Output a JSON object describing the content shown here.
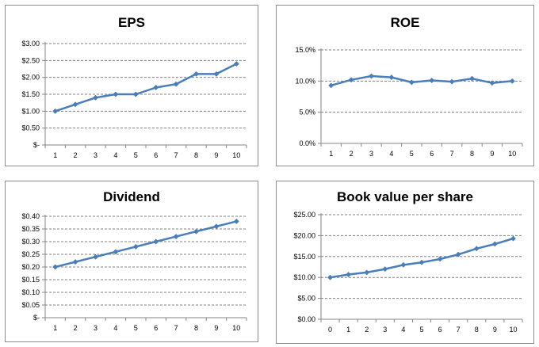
{
  "chart_data": [
    {
      "type": "line",
      "title": "EPS",
      "x": [
        1,
        2,
        3,
        4,
        5,
        6,
        7,
        8,
        9,
        10
      ],
      "series": [
        {
          "values": [
            1.0,
            1.2,
            1.4,
            1.5,
            1.5,
            1.7,
            1.8,
            2.1,
            2.1,
            2.4
          ]
        }
      ],
      "ylim": [
        0,
        3.0
      ],
      "ytick_labels": [
        "$-",
        "$0.50",
        "$1.00",
        "$1.50",
        "$2.00",
        "$2.50",
        "$3.00"
      ],
      "xtick_labels": [
        "1",
        "2",
        "3",
        "4",
        "5",
        "6",
        "7",
        "8",
        "9",
        "10"
      ],
      "grid": true,
      "color": "#4a7ebb"
    },
    {
      "type": "line",
      "title": "ROE",
      "x": [
        1,
        2,
        3,
        4,
        5,
        6,
        7,
        8,
        9,
        10
      ],
      "series": [
        {
          "values": [
            9.3,
            10.2,
            10.8,
            10.6,
            9.8,
            10.1,
            9.9,
            10.4,
            9.7,
            10.0
          ]
        }
      ],
      "ylim": [
        0,
        15
      ],
      "ytick_labels": [
        "0.0%",
        "5.0%",
        "10.0%",
        "15.0%"
      ],
      "xtick_labels": [
        "1",
        "2",
        "3",
        "4",
        "5",
        "6",
        "7",
        "8",
        "9",
        "10"
      ],
      "grid": true,
      "color": "#4a7ebb"
    },
    {
      "type": "line",
      "title": "Dividend",
      "x": [
        1,
        2,
        3,
        4,
        5,
        6,
        7,
        8,
        9,
        10
      ],
      "series": [
        {
          "values": [
            0.2,
            0.22,
            0.24,
            0.26,
            0.28,
            0.3,
            0.32,
            0.34,
            0.36,
            0.38
          ]
        }
      ],
      "ylim": [
        0,
        0.4
      ],
      "ytick_labels": [
        "$-",
        "$0.05",
        "$0.10",
        "$0.15",
        "$0.20",
        "$0.25",
        "$0.30",
        "$0.35",
        "$0.40"
      ],
      "xtick_labels": [
        "1",
        "2",
        "3",
        "4",
        "5",
        "6",
        "7",
        "8",
        "9",
        "10"
      ],
      "grid": true,
      "color": "#4a7ebb"
    },
    {
      "type": "line",
      "title": "Book value per share",
      "x": [
        0,
        1,
        2,
        3,
        4,
        5,
        6,
        7,
        8,
        9,
        10
      ],
      "series": [
        {
          "values": [
            10.0,
            10.7,
            11.2,
            12.0,
            13.0,
            13.6,
            14.4,
            15.5,
            16.9,
            18.0,
            19.3
          ]
        }
      ],
      "ylim": [
        0,
        25
      ],
      "ytick_labels": [
        "$0.00",
        "$5.00",
        "$10.00",
        "$15.00",
        "$20.00",
        "$25.00"
      ],
      "xtick_labels": [
        "0",
        "1",
        "2",
        "3",
        "4",
        "5",
        "6",
        "7",
        "8",
        "9",
        "10"
      ],
      "grid": true,
      "color": "#4a7ebb"
    }
  ]
}
